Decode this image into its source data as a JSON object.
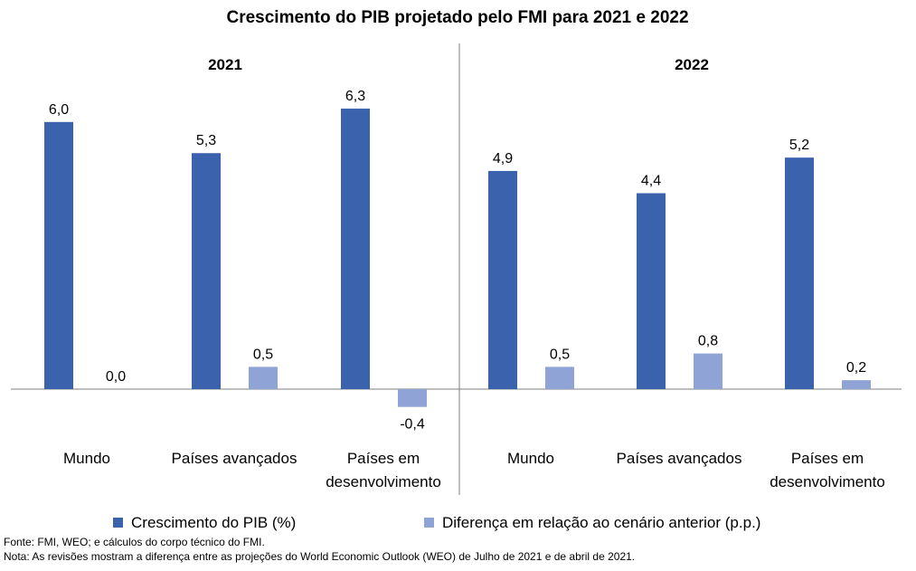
{
  "chart_data": {
    "type": "bar",
    "title": "Crescimento do PIB projetado pelo FMI para 2021 e 2022",
    "groups": [
      {
        "label": "2021",
        "categories": [
          "Mundo",
          "Países avançados",
          "Países em desenvolvimento"
        ],
        "category_lines": [
          [
            "Mundo"
          ],
          [
            "Países avançados"
          ],
          [
            "Países em",
            "desenvolvimento"
          ]
        ],
        "series": [
          {
            "name": "Crescimento do PIB (%)",
            "values": [
              6.0,
              5.3,
              6.3
            ],
            "labels": [
              "6,0",
              "5,3",
              "6,3"
            ]
          },
          {
            "name": "Diferença em relação ao cenário anterior (p.p.)",
            "values": [
              0.0,
              0.5,
              -0.4
            ],
            "labels": [
              "0,0",
              "0,5",
              "-0,4"
            ]
          }
        ]
      },
      {
        "label": "2022",
        "categories": [
          "Mundo",
          "Países avançados",
          "Países em desenvolvimento"
        ],
        "category_lines": [
          [
            "Mundo"
          ],
          [
            "Países avançados"
          ],
          [
            "Países em",
            "desenvolvimento"
          ]
        ],
        "series": [
          {
            "name": "Crescimento do PIB (%)",
            "values": [
              4.9,
              4.4,
              5.2
            ],
            "labels": [
              "4,9",
              "4,4",
              "5,2"
            ]
          },
          {
            "name": "Diferença em relação ao cenário anterior (p.p.)",
            "values": [
              0.5,
              0.8,
              0.2
            ],
            "labels": [
              "0,5",
              "0,8",
              "0,2"
            ]
          }
        ]
      }
    ],
    "legend": [
      {
        "name": "Crescimento do PIB (%)",
        "color": "#3b63ad"
      },
      {
        "name": "Diferença em relação ao cenário anterior (p.p.)",
        "color": "#8fa3d6"
      }
    ],
    "legend_position": "bottom",
    "grid": false
  },
  "notes": {
    "source": "Fonte: FMI, WEO; e cálculos do corpo técnico do FMI.",
    "note": "Nota: As revisões mostram a diferença entre as projeções do World Economic Outlook (WEO) de Julho de 2021 e de abril de 2021."
  }
}
